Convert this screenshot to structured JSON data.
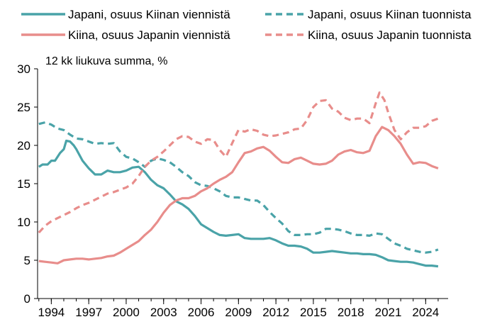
{
  "chart_data": {
    "type": "line",
    "title": "",
    "ylabel": "12 kk liukuva summa, %",
    "xlabel": "",
    "ylim": [
      0,
      30
    ],
    "yticks": [
      0,
      5,
      10,
      15,
      20,
      25,
      30
    ],
    "xlim": [
      1992.9,
      2025.8
    ],
    "xticks": [
      1994,
      1997,
      2000,
      2003,
      2006,
      2009,
      2012,
      2015,
      2018,
      2021,
      2024
    ],
    "grid": false,
    "legend_position": "top",
    "series": [
      {
        "name": "Japani, osuus Kiinan viennistä",
        "color": "#4aa3a8",
        "dash": "solid",
        "points": [
          [
            1993.0,
            17.2
          ],
          [
            1993.3,
            17.5
          ],
          [
            1993.7,
            17.5
          ],
          [
            1994.0,
            18.0
          ],
          [
            1994.3,
            18.0
          ],
          [
            1994.7,
            19.0
          ],
          [
            1995.0,
            19.5
          ],
          [
            1995.2,
            20.6
          ],
          [
            1995.5,
            20.5
          ],
          [
            1995.8,
            20.0
          ],
          [
            1996.0,
            19.5
          ],
          [
            1996.5,
            18.0
          ],
          [
            1997.0,
            17.0
          ],
          [
            1997.5,
            16.2
          ],
          [
            1998.0,
            16.2
          ],
          [
            1998.5,
            16.7
          ],
          [
            1999.0,
            16.5
          ],
          [
            1999.5,
            16.5
          ],
          [
            2000.0,
            16.7
          ],
          [
            2000.5,
            17.1
          ],
          [
            2001.0,
            17.2
          ],
          [
            2001.5,
            16.5
          ],
          [
            2002.0,
            15.5
          ],
          [
            2002.5,
            14.8
          ],
          [
            2003.0,
            14.4
          ],
          [
            2003.5,
            13.6
          ],
          [
            2004.0,
            12.7
          ],
          [
            2004.5,
            12.3
          ],
          [
            2005.0,
            11.7
          ],
          [
            2005.5,
            10.8
          ],
          [
            2006.0,
            9.7
          ],
          [
            2006.5,
            9.2
          ],
          [
            2007.0,
            8.7
          ],
          [
            2007.5,
            8.3
          ],
          [
            2008.0,
            8.2
          ],
          [
            2008.5,
            8.3
          ],
          [
            2009.0,
            8.4
          ],
          [
            2009.5,
            7.9
          ],
          [
            2010.0,
            7.8
          ],
          [
            2010.5,
            7.8
          ],
          [
            2011.0,
            7.8
          ],
          [
            2011.5,
            7.9
          ],
          [
            2012.0,
            7.6
          ],
          [
            2012.5,
            7.2
          ],
          [
            2013.0,
            6.9
          ],
          [
            2013.5,
            6.9
          ],
          [
            2014.0,
            6.8
          ],
          [
            2014.5,
            6.5
          ],
          [
            2015.0,
            6.0
          ],
          [
            2015.5,
            6.0
          ],
          [
            2016.0,
            6.1
          ],
          [
            2016.5,
            6.2
          ],
          [
            2017.0,
            6.1
          ],
          [
            2017.5,
            6.0
          ],
          [
            2018.0,
            5.9
          ],
          [
            2018.5,
            5.9
          ],
          [
            2019.0,
            5.8
          ],
          [
            2019.5,
            5.8
          ],
          [
            2020.0,
            5.7
          ],
          [
            2020.5,
            5.4
          ],
          [
            2021.0,
            5.0
          ],
          [
            2021.5,
            4.9
          ],
          [
            2022.0,
            4.8
          ],
          [
            2022.5,
            4.8
          ],
          [
            2023.0,
            4.7
          ],
          [
            2023.5,
            4.5
          ],
          [
            2024.0,
            4.3
          ],
          [
            2024.5,
            4.3
          ],
          [
            2025.0,
            4.2
          ]
        ]
      },
      {
        "name": "Japani, osuus Kiinan tuonnista",
        "color": "#4aa3a8",
        "dash": "dashed",
        "points": [
          [
            1993.0,
            22.8
          ],
          [
            1993.5,
            23.0
          ],
          [
            1994.0,
            22.7
          ],
          [
            1994.5,
            22.2
          ],
          [
            1995.0,
            22.0
          ],
          [
            1995.5,
            21.4
          ],
          [
            1996.0,
            20.9
          ],
          [
            1996.5,
            20.8
          ],
          [
            1997.0,
            20.5
          ],
          [
            1997.5,
            20.2
          ],
          [
            1998.0,
            20.3
          ],
          [
            1998.5,
            20.2
          ],
          [
            1999.0,
            20.3
          ],
          [
            1999.5,
            19.2
          ],
          [
            2000.0,
            18.5
          ],
          [
            2000.5,
            18.3
          ],
          [
            2001.0,
            17.8
          ],
          [
            2001.5,
            17.2
          ],
          [
            2002.0,
            18.0
          ],
          [
            2002.5,
            18.3
          ],
          [
            2003.0,
            18.1
          ],
          [
            2003.5,
            17.8
          ],
          [
            2004.0,
            17.2
          ],
          [
            2004.5,
            16.5
          ],
          [
            2005.0,
            16.0
          ],
          [
            2005.5,
            15.2
          ],
          [
            2006.0,
            14.8
          ],
          [
            2006.5,
            14.7
          ],
          [
            2007.0,
            14.4
          ],
          [
            2007.5,
            14.0
          ],
          [
            2008.0,
            13.4
          ],
          [
            2008.5,
            13.2
          ],
          [
            2009.0,
            13.2
          ],
          [
            2009.5,
            13.0
          ],
          [
            2010.0,
            12.8
          ],
          [
            2010.5,
            12.8
          ],
          [
            2011.0,
            12.2
          ],
          [
            2011.5,
            11.3
          ],
          [
            2012.0,
            10.5
          ],
          [
            2012.5,
            9.8
          ],
          [
            2013.0,
            8.8
          ],
          [
            2013.5,
            8.3
          ],
          [
            2014.0,
            8.3
          ],
          [
            2014.5,
            8.4
          ],
          [
            2015.0,
            8.4
          ],
          [
            2015.5,
            8.6
          ],
          [
            2016.0,
            9.1
          ],
          [
            2016.5,
            9.1
          ],
          [
            2017.0,
            9.0
          ],
          [
            2017.5,
            8.8
          ],
          [
            2018.0,
            8.5
          ],
          [
            2018.5,
            8.3
          ],
          [
            2019.0,
            8.3
          ],
          [
            2019.5,
            8.2
          ],
          [
            2020.0,
            8.5
          ],
          [
            2020.5,
            8.4
          ],
          [
            2021.0,
            7.8
          ],
          [
            2021.5,
            7.2
          ],
          [
            2022.0,
            6.9
          ],
          [
            2022.5,
            6.5
          ],
          [
            2023.0,
            6.3
          ],
          [
            2023.5,
            6.1
          ],
          [
            2024.0,
            6.0
          ],
          [
            2024.5,
            6.1
          ],
          [
            2025.0,
            6.4
          ]
        ]
      },
      {
        "name": "Kiina, osuus Japanin viennistä",
        "color": "#e88d8b",
        "dash": "solid",
        "points": [
          [
            1993.0,
            4.9
          ],
          [
            1993.5,
            4.8
          ],
          [
            1994.0,
            4.7
          ],
          [
            1994.5,
            4.6
          ],
          [
            1995.0,
            5.0
          ],
          [
            1995.5,
            5.1
          ],
          [
            1996.0,
            5.2
          ],
          [
            1996.5,
            5.2
          ],
          [
            1997.0,
            5.1
          ],
          [
            1997.5,
            5.2
          ],
          [
            1998.0,
            5.3
          ],
          [
            1998.5,
            5.5
          ],
          [
            1999.0,
            5.6
          ],
          [
            1999.5,
            6.0
          ],
          [
            2000.0,
            6.5
          ],
          [
            2000.5,
            7.0
          ],
          [
            2001.0,
            7.5
          ],
          [
            2001.5,
            8.3
          ],
          [
            2002.0,
            9.0
          ],
          [
            2002.5,
            10.0
          ],
          [
            2003.0,
            11.2
          ],
          [
            2003.5,
            12.2
          ],
          [
            2004.0,
            12.8
          ],
          [
            2004.5,
            13.1
          ],
          [
            2005.0,
            13.1
          ],
          [
            2005.5,
            13.4
          ],
          [
            2006.0,
            14.0
          ],
          [
            2006.5,
            14.4
          ],
          [
            2007.0,
            15.0
          ],
          [
            2007.5,
            15.5
          ],
          [
            2008.0,
            15.9
          ],
          [
            2008.5,
            16.5
          ],
          [
            2009.0,
            17.8
          ],
          [
            2009.5,
            19.0
          ],
          [
            2010.0,
            19.2
          ],
          [
            2010.5,
            19.6
          ],
          [
            2011.0,
            19.8
          ],
          [
            2011.5,
            19.3
          ],
          [
            2012.0,
            18.5
          ],
          [
            2012.5,
            17.8
          ],
          [
            2013.0,
            17.7
          ],
          [
            2013.5,
            18.2
          ],
          [
            2014.0,
            18.4
          ],
          [
            2014.5,
            18.0
          ],
          [
            2015.0,
            17.6
          ],
          [
            2015.5,
            17.5
          ],
          [
            2016.0,
            17.6
          ],
          [
            2016.5,
            18.0
          ],
          [
            2017.0,
            18.8
          ],
          [
            2017.5,
            19.2
          ],
          [
            2018.0,
            19.4
          ],
          [
            2018.5,
            19.1
          ],
          [
            2019.0,
            19.0
          ],
          [
            2019.5,
            19.3
          ],
          [
            2020.0,
            21.2
          ],
          [
            2020.5,
            22.4
          ],
          [
            2021.0,
            22.0
          ],
          [
            2021.5,
            21.2
          ],
          [
            2022.0,
            20.2
          ],
          [
            2022.5,
            18.8
          ],
          [
            2023.0,
            17.6
          ],
          [
            2023.5,
            17.8
          ],
          [
            2024.0,
            17.7
          ],
          [
            2024.5,
            17.3
          ],
          [
            2025.0,
            17.0
          ]
        ]
      },
      {
        "name": "Kiina, osuus Japanin tuonnista",
        "color": "#e88d8b",
        "dash": "dashed",
        "points": [
          [
            1993.0,
            8.6
          ],
          [
            1993.5,
            9.5
          ],
          [
            1994.0,
            10.1
          ],
          [
            1994.5,
            10.5
          ],
          [
            1995.0,
            10.9
          ],
          [
            1995.5,
            11.3
          ],
          [
            1996.0,
            11.8
          ],
          [
            1996.5,
            12.2
          ],
          [
            1997.0,
            12.5
          ],
          [
            1997.5,
            12.9
          ],
          [
            1998.0,
            13.3
          ],
          [
            1998.5,
            13.7
          ],
          [
            1999.0,
            13.9
          ],
          [
            1999.5,
            14.2
          ],
          [
            2000.0,
            14.5
          ],
          [
            2000.5,
            15.0
          ],
          [
            2001.0,
            16.0
          ],
          [
            2001.5,
            17.2
          ],
          [
            2002.0,
            18.0
          ],
          [
            2002.5,
            18.5
          ],
          [
            2003.0,
            19.2
          ],
          [
            2003.5,
            20.0
          ],
          [
            2004.0,
            20.8
          ],
          [
            2004.5,
            21.2
          ],
          [
            2005.0,
            21.1
          ],
          [
            2005.5,
            20.5
          ],
          [
            2006.0,
            20.2
          ],
          [
            2006.5,
            20.8
          ],
          [
            2007.0,
            20.7
          ],
          [
            2007.5,
            19.4
          ],
          [
            2008.0,
            18.5
          ],
          [
            2008.5,
            20.3
          ],
          [
            2009.0,
            22.0
          ],
          [
            2009.5,
            21.8
          ],
          [
            2010.0,
            22.1
          ],
          [
            2010.5,
            21.9
          ],
          [
            2011.0,
            21.4
          ],
          [
            2011.5,
            21.2
          ],
          [
            2012.0,
            21.3
          ],
          [
            2012.5,
            21.5
          ],
          [
            2013.0,
            21.7
          ],
          [
            2013.5,
            22.1
          ],
          [
            2014.0,
            22.2
          ],
          [
            2014.5,
            23.3
          ],
          [
            2015.0,
            25.0
          ],
          [
            2015.5,
            25.8
          ],
          [
            2016.0,
            25.9
          ],
          [
            2016.5,
            24.8
          ],
          [
            2017.0,
            24.4
          ],
          [
            2017.5,
            23.6
          ],
          [
            2018.0,
            23.3
          ],
          [
            2018.5,
            23.5
          ],
          [
            2019.0,
            23.5
          ],
          [
            2019.5,
            22.9
          ],
          [
            2020.0,
            25.5
          ],
          [
            2020.3,
            26.9
          ],
          [
            2020.7,
            25.9
          ],
          [
            2021.0,
            24.3
          ],
          [
            2021.5,
            22.0
          ],
          [
            2022.0,
            20.8
          ],
          [
            2022.5,
            21.7
          ],
          [
            2023.0,
            22.3
          ],
          [
            2023.5,
            22.3
          ],
          [
            2024.0,
            22.5
          ],
          [
            2024.5,
            23.2
          ],
          [
            2025.0,
            23.5
          ]
        ]
      }
    ]
  }
}
